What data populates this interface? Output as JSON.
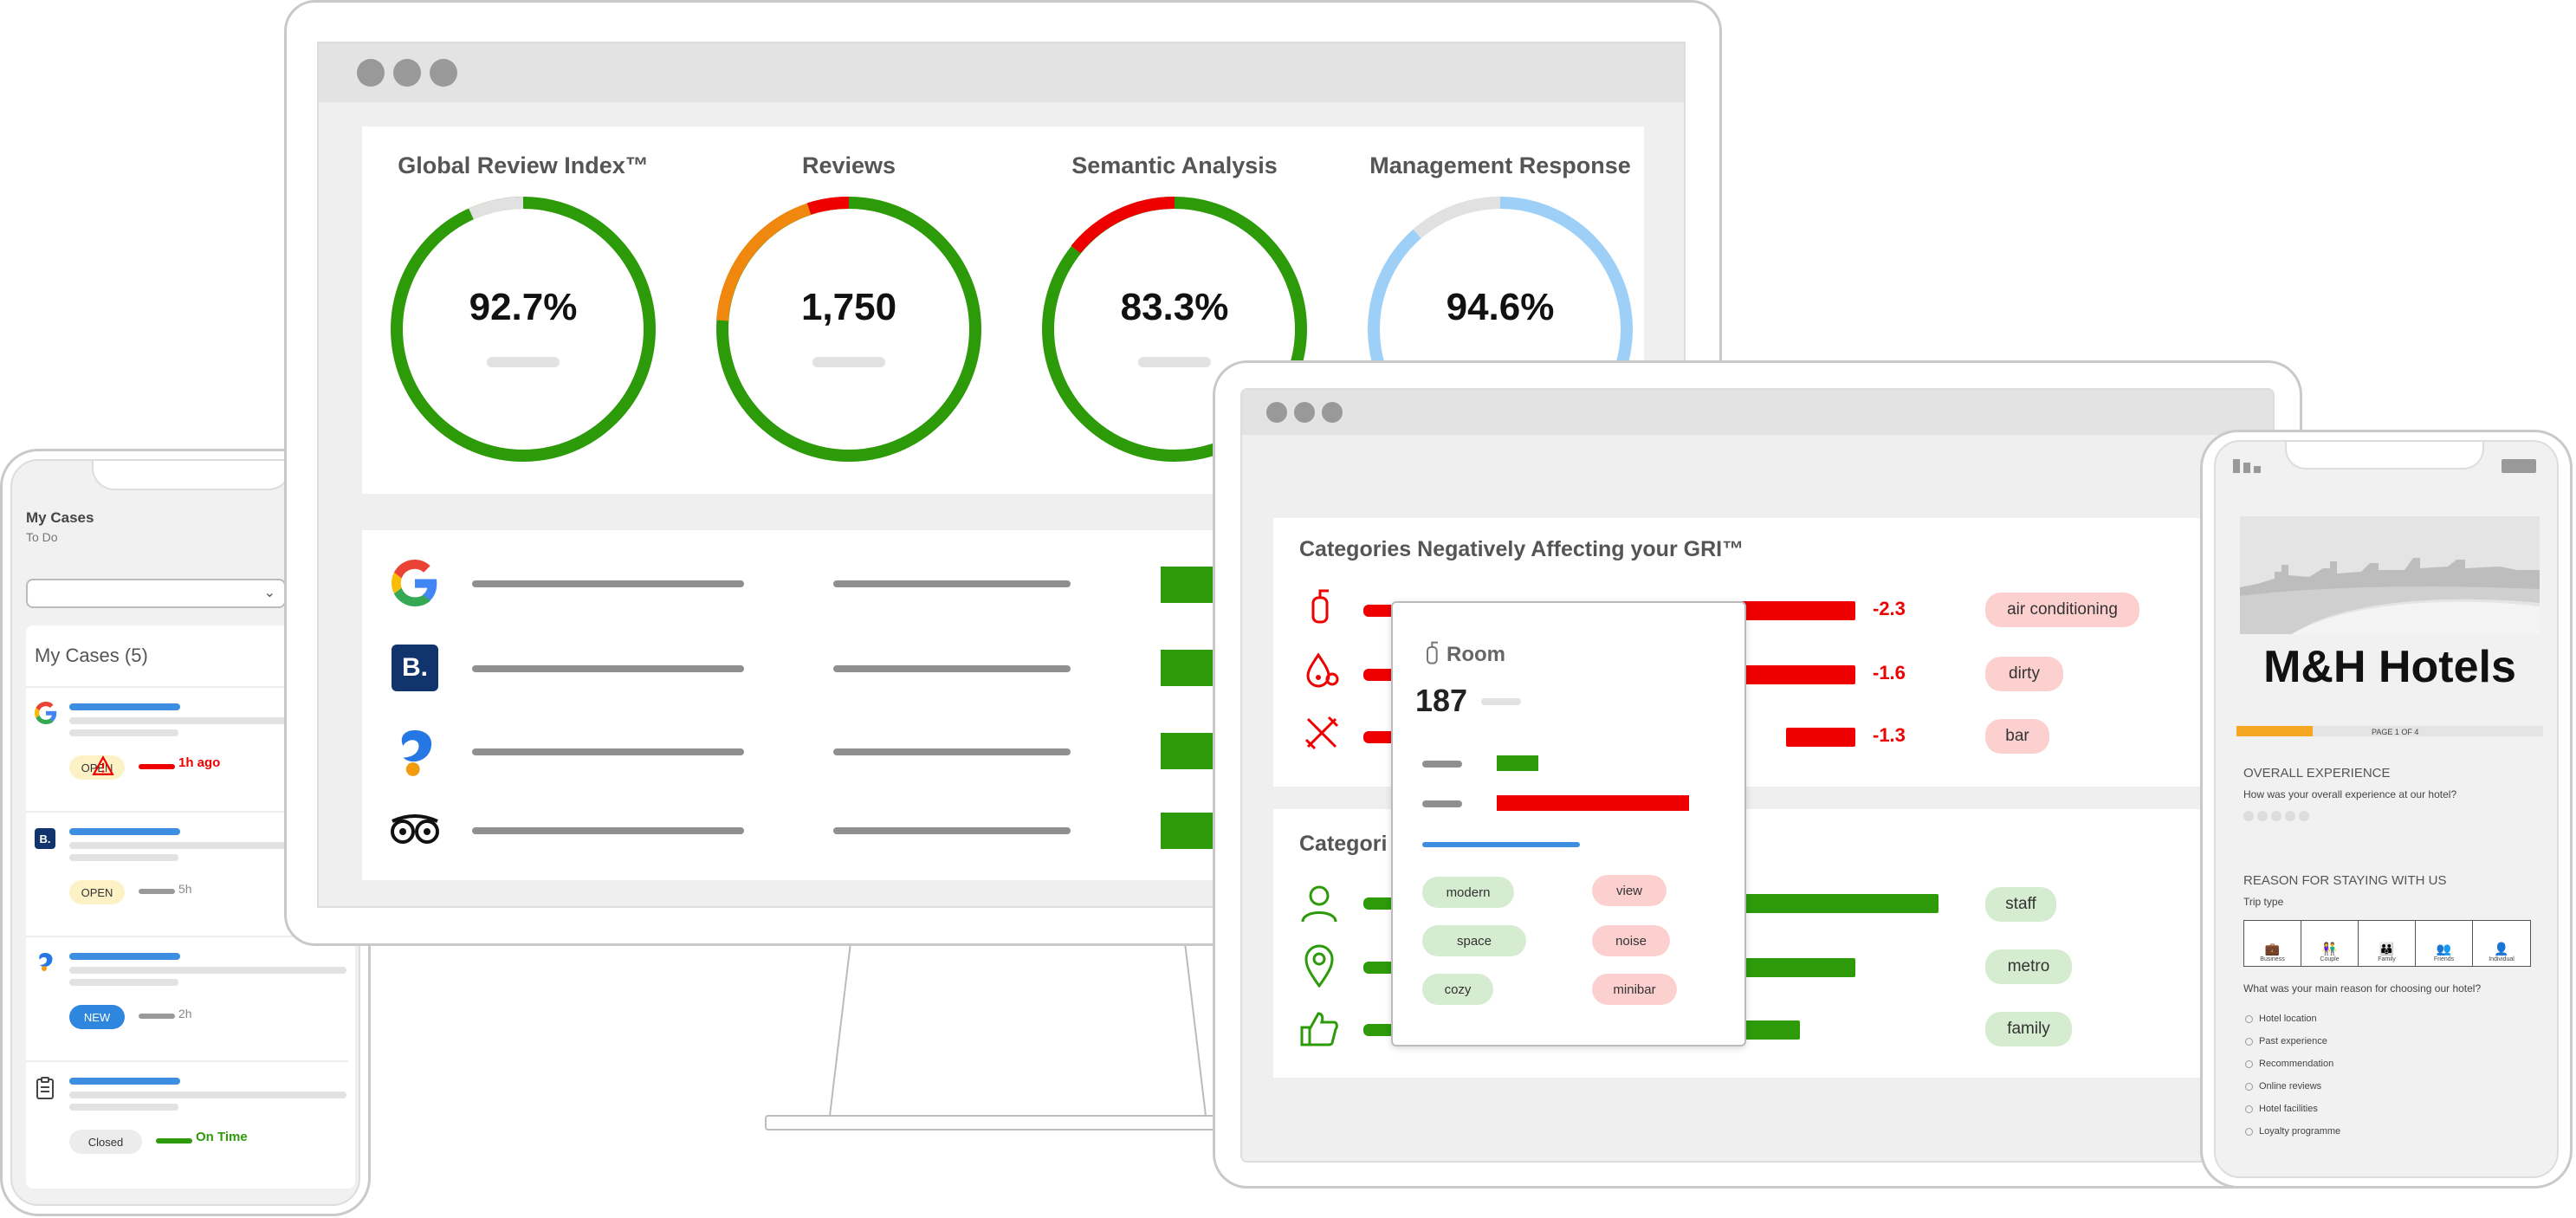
{
  "desktop": {
    "kpis": [
      {
        "title": "Global Review Index™",
        "value": "92.7%"
      },
      {
        "title": "Reviews",
        "value": "1,750"
      },
      {
        "title": "Semantic Analysis",
        "value": "83.3%"
      },
      {
        "title": "Management Response",
        "value": "94.6%"
      }
    ],
    "sources": [
      {
        "icon": "google-icon"
      },
      {
        "icon": "booking-icon",
        "letter": "B."
      },
      {
        "icon": "ctrip-icon"
      },
      {
        "icon": "tripadvisor-icon"
      }
    ]
  },
  "mobile_left": {
    "header_title": "My Cases",
    "header_subtitle": "To Do",
    "list_title": "My Cases (5)",
    "cases": [
      {
        "icon": "google-icon",
        "status": "OPEN",
        "time": "1h ago",
        "time_color": "#e00",
        "alert": true
      },
      {
        "icon": "booking-icon",
        "status": "OPEN",
        "time": "5h",
        "time_color": "#888",
        "alert": false
      },
      {
        "icon": "ctrip-icon",
        "status": "NEW",
        "time": "2h",
        "time_color": "#888",
        "alert": false
      },
      {
        "icon": "clipboard-icon",
        "status": "Closed",
        "time": "On Time",
        "time_color": "#2d9a0a",
        "alert": false
      }
    ]
  },
  "tablet": {
    "neg_title": "Categories Negatively Affecting your GRI™",
    "pos_title": "Categori",
    "neg_rows": [
      {
        "icon": "fire-extinguisher-icon",
        "value": "-2.3",
        "tag": "air conditioning"
      },
      {
        "icon": "dirt-icon",
        "value": "-1.6",
        "tag": "dirty"
      },
      {
        "icon": "cutlery-icon",
        "value": "-1.3",
        "tag": "bar"
      }
    ],
    "pos_rows": [
      {
        "icon": "person-icon",
        "tag": "staff"
      },
      {
        "icon": "location-pin-icon",
        "tag": "metro"
      },
      {
        "icon": "thumbs-up-icon",
        "tag": "family"
      }
    ],
    "popup": {
      "title": "Room",
      "count": "187",
      "pos_tags": [
        "modern",
        "space",
        "cozy"
      ],
      "neg_tags": [
        "view",
        "noise",
        "minibar"
      ]
    }
  },
  "phone_right": {
    "brand": "M&H Hotels",
    "page_label": "PAGE 1 OF 4",
    "progress": 0.25,
    "section1_title": "OVERALL EXPERIENCE",
    "section1_question": "How was your overall experience at our hotel?",
    "section2_title": "REASON FOR STAYING WITH US",
    "trip_type_label": "Trip type",
    "trip_types": [
      "Business",
      "Couple",
      "Family",
      "Friends",
      "Individual"
    ],
    "reason_question": "What was your main reason for choosing our hotel?",
    "reasons": [
      "Hotel location",
      "Past experience",
      "Recommendation",
      "Online reviews",
      "Hotel facilities",
      "Loyalty programme"
    ]
  },
  "colors": {
    "green": "#2d9a0a",
    "red": "#e00",
    "orange": "#f0870f",
    "light_blue": "#9ed0f7",
    "blue": "#3e8ee0"
  }
}
